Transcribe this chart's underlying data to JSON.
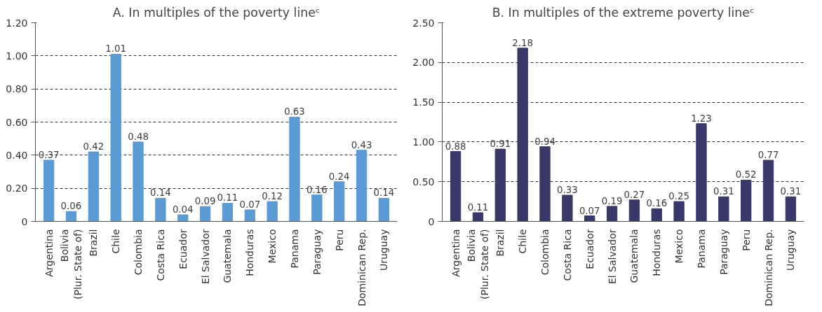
{
  "chart_data": [
    {
      "type": "bar",
      "title": "A. In multiples of the poverty lineᶜ",
      "categories": [
        "Argentina",
        "Bolivia\n(Plur. State of)",
        "Brazil",
        "Chile",
        "Colombia",
        "Costa Rica",
        "Ecuador",
        "El Salvador",
        "Guatemala",
        "Honduras",
        "Mexico",
        "Panama",
        "Paraguay",
        "Peru",
        "Dominican Rep.",
        "Uruguay"
      ],
      "values": [
        0.37,
        0.06,
        0.42,
        1.01,
        0.48,
        0.14,
        0.04,
        0.09,
        0.11,
        0.07,
        0.12,
        0.63,
        0.16,
        0.24,
        0.43,
        0.14
      ],
      "color": "#5b9bd5",
      "data_labels": true,
      "grid": "y",
      "ylim": [
        0,
        1.2
      ],
      "yticks": [
        {
          "value": 0,
          "label": "0"
        },
        {
          "value": 0.2,
          "label": "0.20"
        },
        {
          "value": 0.4,
          "label": "0.40"
        },
        {
          "value": 0.6,
          "label": "0.60"
        },
        {
          "value": 0.8,
          "label": "0.80"
        },
        {
          "value": 1.0,
          "label": "1.00"
        },
        {
          "value": 1.2,
          "label": "1.20"
        }
      ]
    },
    {
      "type": "bar",
      "title": "B. In multiples of the extreme poverty lineᶜ",
      "categories": [
        "Argentina",
        "Bolivia\n(Plur. State of)",
        "Brazil",
        "Chile",
        "Colombia",
        "Costa Rica",
        "Ecuador",
        "El Salvador",
        "Guatemala",
        "Honduras",
        "Mexico",
        "Panama",
        "Paraguay",
        "Peru",
        "Dominican Rep.",
        "Uruguay"
      ],
      "values": [
        0.88,
        0.11,
        0.91,
        2.18,
        0.94,
        0.33,
        0.07,
        0.19,
        0.27,
        0.16,
        0.25,
        1.23,
        0.31,
        0.52,
        0.77,
        0.31
      ],
      "color": "#38386b",
      "data_labels": true,
      "grid": "y",
      "ylim": [
        0,
        2.5
      ],
      "yticks": [
        {
          "value": 0,
          "label": "0"
        },
        {
          "value": 0.5,
          "label": "0.50"
        },
        {
          "value": 1.0,
          "label": "1.00"
        },
        {
          "value": 1.5,
          "label": "1.50"
        },
        {
          "value": 2.0,
          "label": "2.00"
        },
        {
          "value": 2.5,
          "label": "2.50"
        }
      ]
    }
  ]
}
